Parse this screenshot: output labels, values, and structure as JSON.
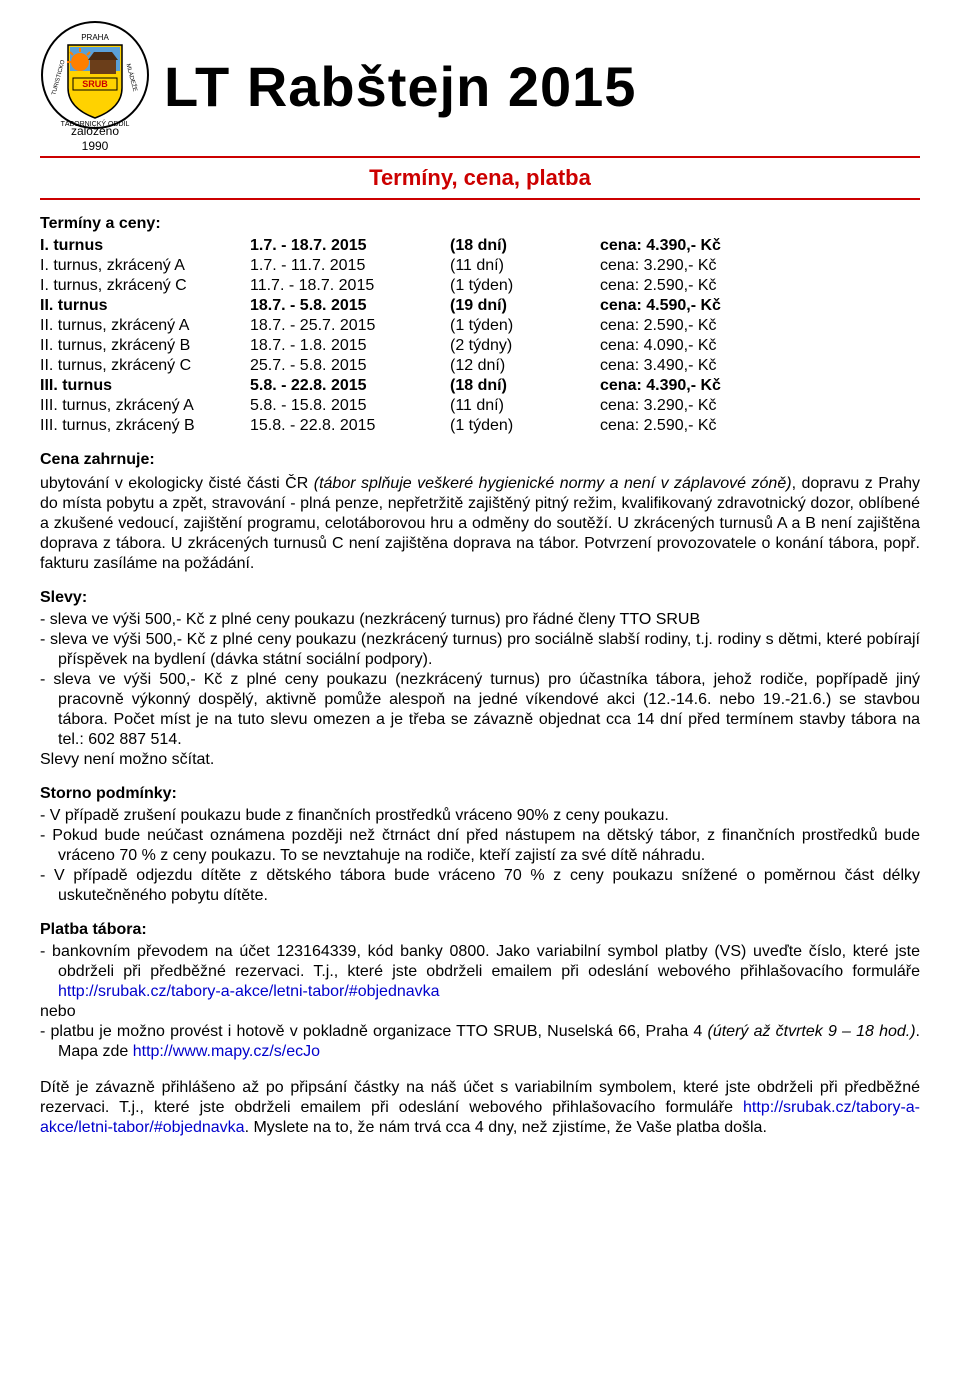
{
  "header": {
    "founded_line1": "založeno",
    "founded_line2": "1990",
    "title": "LT Rabštejn 2015",
    "subtitle": "Termíny, cena, platba",
    "logo": {
      "outer_text_color": "#000000",
      "shield_fill": "#ffd200",
      "shield_stroke": "#000000",
      "sun_color": "#ff7f00",
      "sky_color": "#5aa0d8",
      "cabin_color": "#6b3e1a",
      "banner_fill": "#ffd200",
      "banner_text": "SRUB",
      "top_label_left": "TURISTICKO",
      "top_label_right": "MLÁDEŽE",
      "bottom_label": "TÁBORNICKÝ",
      "city": "PRAHA"
    }
  },
  "terms": {
    "heading": "Termíny a ceny:",
    "rows": [
      {
        "c1": "I. turnus",
        "c2": "1.7. - 18.7. 2015",
        "c3": "(18 dní)",
        "c4": "cena: 4.390,- Kč",
        "bold": true
      },
      {
        "c1": "I. turnus, zkrácený A",
        "c2": "1.7. - 11.7. 2015",
        "c3": "(11 dní)",
        "c4": "cena: 3.290,- Kč",
        "bold": false
      },
      {
        "c1": "I. turnus, zkrácený C",
        "c2": "11.7. - 18.7. 2015",
        "c3": "(1 týden)",
        "c4": "cena: 2.590,- Kč",
        "bold": false
      },
      {
        "c1": "II. turnus",
        "c2": "18.7. -  5.8. 2015",
        "c3": "(19 dní)",
        "c4": "cena: 4.590,- Kč",
        "bold": true
      },
      {
        "c1": "II. turnus, zkrácený A",
        "c2": "18.7. - 25.7. 2015",
        "c3": "(1 týden)",
        "c4": "cena: 2.590,- Kč",
        "bold": false
      },
      {
        "c1": "II. turnus, zkrácený B",
        "c2": "18.7. -  1.8. 2015",
        "c3": "(2 týdny)",
        "c4": "cena: 4.090,- Kč",
        "bold": false
      },
      {
        "c1": "II. turnus, zkrácený C",
        "c2": "25.7. -  5.8. 2015",
        "c3": "(12 dní)",
        "c4": "cena: 3.490,- Kč",
        "bold": false
      },
      {
        "c1": "III. turnus",
        "c2": "5.8. - 22.8. 2015",
        "c3": "(18 dní)",
        "c4": "cena: 4.390,- Kč",
        "bold": true
      },
      {
        "c1": "III. turnus, zkrácený A",
        "c2": "5.8. - 15.8. 2015",
        "c3": "(11 dní)",
        "c4": "cena: 3.290,- Kč",
        "bold": false
      },
      {
        "c1": "III. turnus, zkrácený B",
        "c2": "15.8. - 22.8. 2015",
        "c3": "(1 týden)",
        "c4": "cena: 2.590,- Kč",
        "bold": false
      }
    ]
  },
  "price_includes": {
    "heading": "Cena zahrnuje:",
    "text_part1": "ubytování v ekologicky čisté části ČR ",
    "text_italic": "(tábor splňuje veškeré hygienické normy a není v záplavové zóně)",
    "text_part2": ", dopravu z Prahy do místa pobytu a zpět, stravování - plná penze, nepřetržitě zajištěný pitný režim, kvalifikovaný zdravotnický dozor, oblíbené a zkušené vedoucí, zajištění programu, celotáborovou hru a odměny do soutěží. U zkrácených turnusů A a B není zajištěna doprava z tábora. U zkrácených turnusů C není zajištěna doprava na tábor. Potvrzení provozovatele o konání tábora, popř. fakturu zasíláme na požádání."
  },
  "discounts": {
    "heading": "Slevy:",
    "items": [
      "sleva  ve  výši  500,- Kč z plné  ceny  poukazu (nezkrácený turnus) pro řádné členy TTO SRUB",
      "sleva  ve  výši  500,- Kč z plné  ceny  poukazu  (nezkrácený turnus)  pro  sociálně slabší rodiny, t.j. rodiny s  dětmi, které pobírají příspěvek na bydlení (dávka státní sociální podpory).",
      "sleva ve výši 500,- Kč z plné ceny poukazu (nezkrácený turnus) pro účastníka tábora, jehož rodiče, popřípadě jiný pracovně výkonný dospělý, aktivně pomůže alespoň na jedné víkendové akci (12.-14.6. nebo 19.-21.6.) se stavbou tábora. Počet míst je na tuto slevu omezen a je třeba se závazně objednat cca 14 dní před termínem stavby tábora na tel.: 602 887 514."
    ],
    "footer": "Slevy není možno sčítat."
  },
  "storno": {
    "heading": "Storno podmínky:",
    "items": [
      "V případě zrušení poukazu bude z finančních prostředků vráceno 90% z ceny poukazu.",
      "Pokud bude neúčast oznámena později než čtrnáct dní před nástupem na dětský tábor, z finančních prostředků bude vráceno 70 % z ceny poukazu. To se nevztahuje na rodiče, kteří zajistí za své dítě náhradu.",
      "V případě odjezdu dítěte z dětského tábora bude vráceno 70 % z ceny poukazu snížené o poměrnou část délky uskutečněného pobytu dítěte."
    ]
  },
  "payment": {
    "heading": "Platba tábora:",
    "item1_pre": "bankovním převodem na účet 123164339, kód banky 0800. Jako variabilní symbol platby (VS) uveďte číslo, které jste obdrželi při předběžné rezervaci. T.j., které jste obdrželi emailem při odeslání webového přihlašovacího formuláře ",
    "item1_link": "http://srubak.cz/tabory-a-akce/letni-tabor/#objednavka",
    "or": "nebo",
    "item2_pre": "platbu je možno provést i hotově v pokladně organizace TTO SRUB, Nuselská 66, Praha 4 ",
    "item2_italic": "(úterý až čtvrtek 9 – 18 hod.)",
    "item2_mid": ". Mapa zde ",
    "item2_link": "http://www.mapy.cz/s/ecJo"
  },
  "footer_para": {
    "text1": "Dítě je závazně přihlášeno až po připsání částky na náš účet s variabilním symbolem, které jste obdrželi při předběžné rezervaci. T.j., které jste obdrželi emailem při odeslání webového přihlašovacího formuláře ",
    "link": "http://srubak.cz/tabory-a-akce/letni-tabor/#objednavka",
    "text2": ". Myslete na to, že nám trvá cca 4 dny, než zjistíme, že Vaše platba došla."
  },
  "colors": {
    "accent_red": "#cc0000",
    "link_blue": "#0000cc",
    "text": "#000000",
    "background": "#ffffff"
  }
}
